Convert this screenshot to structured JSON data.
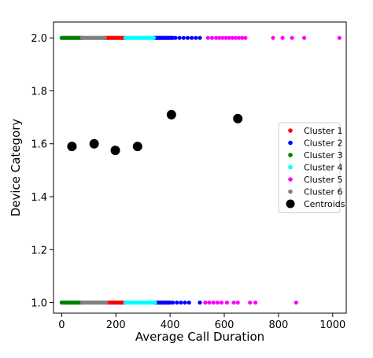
{
  "chart_data": {
    "type": "scatter",
    "title": "",
    "xlabel": "Average Call Duration",
    "ylabel": "Device Category",
    "xlim": [
      -30,
      1050
    ],
    "ylim": [
      0.96,
      2.06
    ],
    "xticks": [
      "0",
      "200",
      "400",
      "600",
      "800",
      "1000"
    ],
    "yticks": [
      "1.0",
      "1.2",
      "1.4",
      "1.6",
      "1.8",
      "2.0"
    ],
    "xtick_values": [
      0,
      200,
      400,
      600,
      800,
      1000
    ],
    "ytick_values": [
      1.0,
      1.2,
      1.4,
      1.6,
      1.8,
      2.0
    ],
    "grid": false,
    "legend_position": "right",
    "series": [
      {
        "name": "Cluster 1",
        "color": "#ff0000",
        "dense_ranges": [
          {
            "y": 2.0,
            "x_start": 160,
            "x_end": 235
          },
          {
            "y": 1.0,
            "x_start": 165,
            "x_end": 235
          }
        ],
        "points": []
      },
      {
        "name": "Cluster 2",
        "color": "#0000ff",
        "dense_ranges": [
          {
            "y": 2.0,
            "x_start": 340,
            "x_end": 410
          },
          {
            "y": 1.0,
            "x_start": 340,
            "x_end": 400
          }
        ],
        "points": [
          [
            420,
            2.0
          ],
          [
            435,
            2.0
          ],
          [
            450,
            2.0
          ],
          [
            465,
            2.0
          ],
          [
            480,
            2.0
          ],
          [
            495,
            2.0
          ],
          [
            510,
            2.0
          ],
          [
            410,
            1.0
          ],
          [
            425,
            1.0
          ],
          [
            440,
            1.0
          ],
          [
            455,
            1.0
          ],
          [
            470,
            1.0
          ],
          [
            510,
            1.0
          ]
        ]
      },
      {
        "name": "Cluster 3",
        "color": "#008000",
        "dense_ranges": [
          {
            "y": 2.0,
            "x_start": 0,
            "x_end": 75
          },
          {
            "y": 1.0,
            "x_start": 0,
            "x_end": 75
          }
        ],
        "points": []
      },
      {
        "name": "Cluster 4",
        "color": "#00ffff",
        "dense_ranges": [
          {
            "y": 2.0,
            "x_start": 235,
            "x_end": 340
          },
          {
            "y": 1.0,
            "x_start": 235,
            "x_end": 345
          }
        ],
        "points": []
      },
      {
        "name": "Cluster 5",
        "color": "#ff00ff",
        "dense_ranges": [],
        "points": [
          [
            540,
            2.0
          ],
          [
            555,
            2.0
          ],
          [
            570,
            2.0
          ],
          [
            582,
            2.0
          ],
          [
            594,
            2.0
          ],
          [
            606,
            2.0
          ],
          [
            618,
            2.0
          ],
          [
            630,
            2.0
          ],
          [
            642,
            2.0
          ],
          [
            654,
            2.0
          ],
          [
            666,
            2.0
          ],
          [
            678,
            2.0
          ],
          [
            780,
            2.0
          ],
          [
            815,
            2.0
          ],
          [
            850,
            2.0
          ],
          [
            895,
            2.0
          ],
          [
            1025,
            2.0
          ],
          [
            530,
            1.0
          ],
          [
            545,
            1.0
          ],
          [
            560,
            1.0
          ],
          [
            575,
            1.0
          ],
          [
            590,
            1.0
          ],
          [
            610,
            1.0
          ],
          [
            635,
            1.0
          ],
          [
            650,
            1.0
          ],
          [
            695,
            1.0
          ],
          [
            715,
            1.0
          ],
          [
            865,
            1.0
          ]
        ]
      },
      {
        "name": "Cluster 6",
        "color": "#808080",
        "dense_ranges": [
          {
            "y": 2.0,
            "x_start": 75,
            "x_end": 160
          },
          {
            "y": 1.0,
            "x_start": 75,
            "x_end": 165
          }
        ],
        "points": []
      },
      {
        "name": "Centroids",
        "color": "#000000",
        "marker": "large",
        "dense_ranges": [],
        "points": [
          [
            38,
            1.59
          ],
          [
            120,
            1.6
          ],
          [
            198,
            1.575
          ],
          [
            280,
            1.59
          ],
          [
            405,
            1.71
          ],
          [
            650,
            1.695
          ]
        ]
      }
    ]
  }
}
